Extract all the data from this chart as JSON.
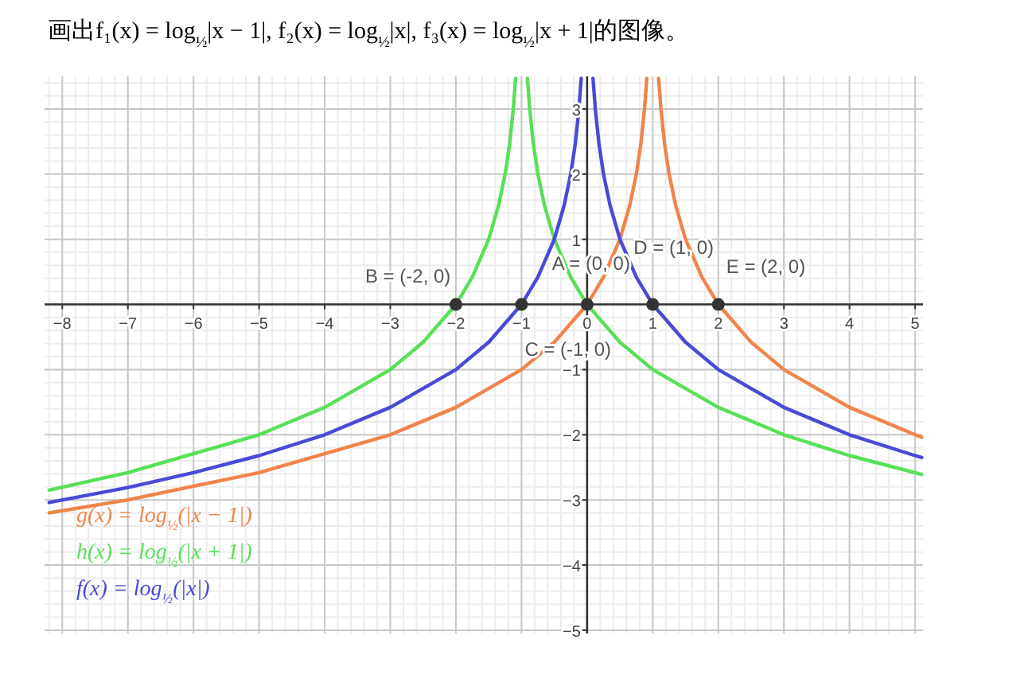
{
  "chart_data": {
    "type": "line",
    "title": "画出f₁(x) = log$_{½}$|x − 1|, f₂(x) = log$_{½}$|x|, f₃(x) = log$_{½}$|x + 1|的图像。",
    "xlim": [
      -8.27,
      5.12
    ],
    "ylim": [
      -5.05,
      3.5
    ],
    "xticks": [
      -8,
      -7,
      -6,
      -5,
      -4,
      -3,
      -2,
      -1,
      0,
      1,
      2,
      3,
      4,
      5
    ],
    "yticks": [
      -5,
      -4,
      -3,
      -2,
      -1,
      {
        "value": 0,
        "label": null
      },
      1,
      2,
      3
    ],
    "grid": true,
    "legend": "bottom left",
    "line_style": "solid",
    "series": [
      {
        "name": "g(x) = log$_{½}$(|x − 1|)",
        "color": "#f0844c",
        "x": [
          -8.2,
          -7,
          -5,
          -3,
          -2,
          -1,
          -0.5,
          0,
          0.25,
          0.5,
          0.65,
          0.75,
          0.82,
          0.875,
          0.91,
          1,
          1.09,
          1.125,
          1.18,
          1.25,
          1.35,
          1.5,
          1.75,
          2,
          2.5,
          3,
          4,
          5,
          5.1
        ],
        "values": [
          -3.2,
          -3,
          -2.58,
          -2,
          -1.58,
          -1,
          -0.58,
          0,
          0.42,
          1,
          1.52,
          2,
          2.47,
          3,
          3.47,
          null,
          3.47,
          3,
          2.47,
          2,
          1.52,
          1,
          0.42,
          0,
          -0.58,
          -1,
          -1.58,
          -2,
          -2.04
        ]
      },
      {
        "name": "h(x) = log$_{½}$(|x + 1|)",
        "color": "#58e058",
        "x": [
          -8.2,
          -7,
          -5,
          -4,
          -3,
          -2.5,
          -2,
          -1.75,
          -1.5,
          -1.35,
          -1.25,
          -1.18,
          -1.125,
          -1.09,
          -1,
          -0.91,
          -0.875,
          -0.82,
          -0.75,
          -0.65,
          -0.5,
          -0.25,
          0,
          0.5,
          1,
          2,
          3,
          4,
          5.1
        ],
        "values": [
          -2.85,
          -2.58,
          -2,
          -1.58,
          -1,
          -0.58,
          0,
          0.42,
          1,
          1.52,
          2,
          2.47,
          3,
          3.47,
          null,
          3.47,
          3,
          2.47,
          2,
          1.52,
          1,
          0.42,
          0,
          -0.58,
          -1,
          -1.58,
          -2,
          -2.32,
          -2.61
        ]
      },
      {
        "name": "f(x) = log$_{½}$(|x|)",
        "color": "#4a4ad6",
        "x": [
          -8.2,
          -7,
          -6,
          -5,
          -4,
          -3,
          -2,
          -1.5,
          -1,
          -0.75,
          -0.5,
          -0.35,
          -0.25,
          -0.18,
          -0.125,
          -0.09,
          0,
          0.09,
          0.125,
          0.18,
          0.25,
          0.35,
          0.5,
          0.75,
          1,
          1.5,
          2,
          3,
          4,
          5,
          5.1
        ],
        "values": [
          -3.04,
          -2.81,
          -2.58,
          -2.32,
          -2,
          -1.58,
          -1,
          -0.58,
          0,
          0.42,
          1,
          1.52,
          2,
          2.47,
          3,
          3.47,
          null,
          3.47,
          3,
          2.47,
          2,
          1.52,
          1,
          0.42,
          0,
          -0.58,
          -1,
          -1.58,
          -2,
          -2.32,
          -2.35
        ]
      },
      {
        "type": "scatter",
        "marker": "circle",
        "color": "#333333",
        "x": [
          0,
          -2,
          -1,
          1,
          2
        ],
        "values": [
          0,
          0,
          0,
          0,
          0
        ]
      }
    ],
    "annotations": [
      {
        "text": "A = (0, 0)",
        "x": 0,
        "y": 0
      },
      {
        "text": "B = (-2, 0)",
        "x": -2,
        "y": 0
      },
      {
        "text": "C = (-1, 0)",
        "x": -1,
        "y": 0
      },
      {
        "text": "D = (1, 0)",
        "x": 1,
        "y": 0
      },
      {
        "text": "E = (2, 0)",
        "x": 2,
        "y": 0
      }
    ]
  }
}
